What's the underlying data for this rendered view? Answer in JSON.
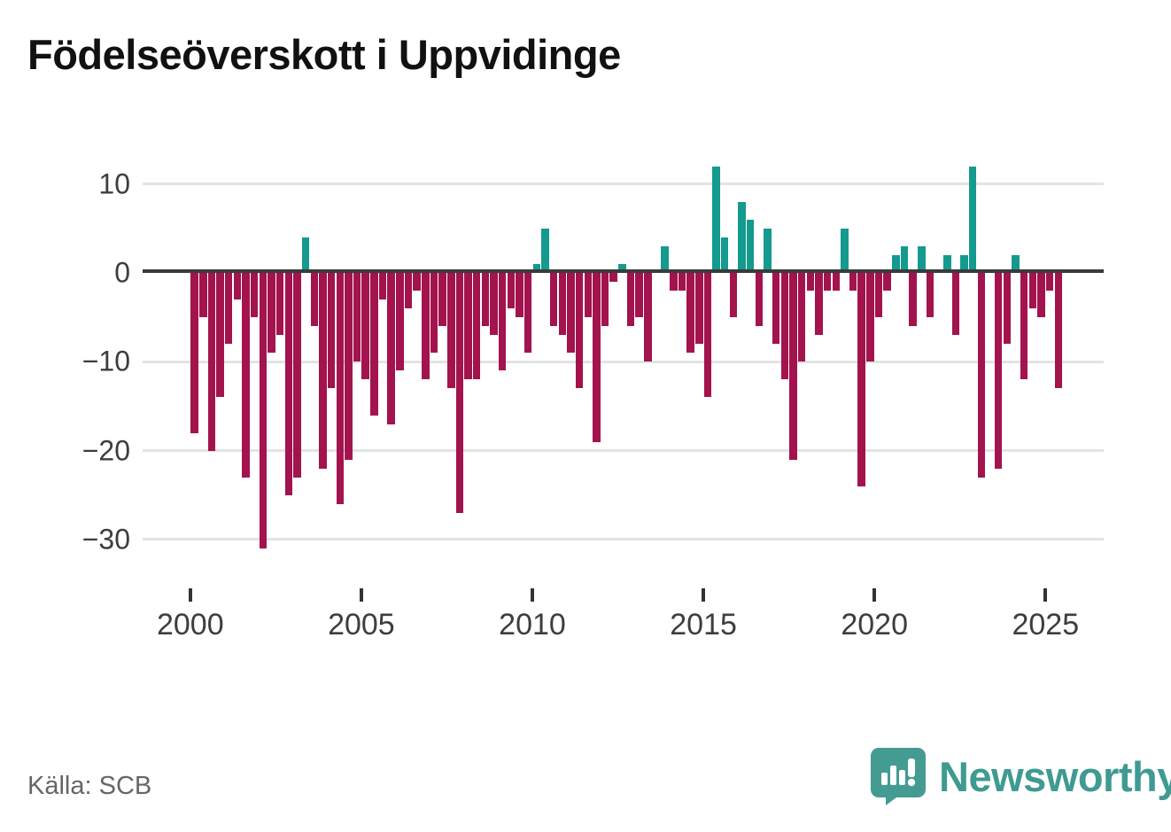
{
  "title": "Födelseöverskott i Uppvidinge",
  "source": "Källa: SCB",
  "logo": {
    "brand": "Newsworthy"
  },
  "colors": {
    "positive": "#149a8e",
    "negative": "#a3134e",
    "zero_line": "#3a3a3a",
    "gridline": "#e3e3e3",
    "logo_teal": "#449b92"
  },
  "chart_data": {
    "type": "bar",
    "title": "Födelseöverskott i Uppvidinge",
    "x_start_year": 2000,
    "x_start_quarter": 1,
    "quarters_per_year": 4,
    "x_tick_years": [
      "2000",
      "2005",
      "2010",
      "2015",
      "2020",
      "2025"
    ],
    "y_ticks": [
      10,
      0,
      -10,
      -20,
      -30
    ],
    "y_tick_labels": [
      "10",
      "0",
      "−10",
      "−20",
      "−30"
    ],
    "ylim": [
      -33,
      13
    ],
    "grid": true,
    "legend": false,
    "values": [
      -18,
      -5,
      -20,
      -14,
      -8,
      -3,
      -23,
      -5,
      -31,
      -9,
      -7,
      -25,
      -23,
      4,
      -6,
      -22,
      -13,
      -26,
      -21,
      -10,
      -12,
      -16,
      -3,
      -17,
      -11,
      -4,
      -2,
      -12,
      -9,
      -6,
      -13,
      -27,
      -12,
      -12,
      -6,
      -7,
      -11,
      -4,
      -5,
      -9,
      1,
      5,
      -6,
      -7,
      -9,
      -13,
      -5,
      -19,
      -6,
      -1,
      1,
      -6,
      -5,
      -10,
      0,
      3,
      -2,
      -2,
      -9,
      -8,
      -14,
      12,
      4,
      -5,
      8,
      6,
      -6,
      5,
      -8,
      -12,
      -21,
      -10,
      -2,
      -7,
      -2,
      -2,
      5,
      -2,
      -24,
      -10,
      -5,
      -2,
      2,
      3,
      -6,
      3,
      -5,
      0,
      2,
      -7,
      2,
      12,
      -23,
      0,
      -22,
      -8,
      2,
      -12,
      -4,
      -5,
      -2,
      -13
    ]
  }
}
